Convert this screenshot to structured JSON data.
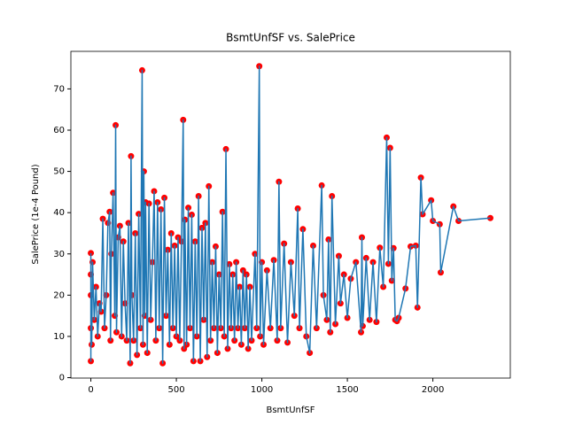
{
  "chart_data": {
    "type": "line",
    "title": "BsmtUnfSF vs. SalePrice",
    "x_label": "BsmtUnfSF",
    "y_label": "SalePrice (1e-4 Pound)",
    "x": [
      0,
      0,
      0,
      0,
      0,
      5,
      10,
      20,
      30,
      40,
      50,
      60,
      70,
      80,
      90,
      100,
      110,
      115,
      120,
      130,
      140,
      145,
      150,
      160,
      170,
      180,
      190,
      200,
      210,
      220,
      230,
      235,
      240,
      250,
      260,
      270,
      280,
      290,
      300,
      305,
      310,
      315,
      320,
      330,
      340,
      350,
      360,
      370,
      380,
      390,
      400,
      410,
      420,
      430,
      440,
      450,
      460,
      470,
      480,
      490,
      500,
      510,
      520,
      530,
      540,
      545,
      550,
      560,
      570,
      580,
      590,
      600,
      610,
      620,
      630,
      640,
      650,
      660,
      670,
      680,
      690,
      700,
      710,
      720,
      730,
      740,
      750,
      760,
      770,
      780,
      790,
      800,
      810,
      820,
      830,
      840,
      850,
      860,
      870,
      880,
      890,
      900,
      910,
      920,
      930,
      940,
      960,
      970,
      985,
      990,
      1000,
      1010,
      1030,
      1050,
      1070,
      1090,
      1100,
      1110,
      1130,
      1150,
      1170,
      1190,
      1210,
      1220,
      1240,
      1260,
      1280,
      1300,
      1320,
      1350,
      1360,
      1380,
      1390,
      1400,
      1410,
      1430,
      1450,
      1460,
      1480,
      1500,
      1520,
      1550,
      1580,
      1585,
      1590,
      1610,
      1630,
      1650,
      1670,
      1690,
      1710,
      1730,
      1740,
      1750,
      1760,
      1770,
      1780,
      1790,
      1800,
      1840,
      1870,
      1900,
      1910,
      1930,
      1940,
      1990,
      2000,
      2040,
      2046,
      2120,
      2150,
      2336
    ],
    "series": [
      {
        "name": "SalePrice",
        "color": "#1f77b4",
        "marker_color": "#ff0000",
        "values": [
          30.2,
          4,
          25,
          12,
          20,
          8,
          28,
          14,
          22,
          10,
          18,
          16,
          38.5,
          12,
          20,
          37.5,
          40.2,
          9,
          30,
          44.8,
          15,
          61.2,
          11,
          34,
          36.8,
          10,
          33,
          18,
          9,
          37.5,
          3.5,
          53.7,
          20,
          9,
          35,
          5.5,
          39.7,
          12,
          74.5,
          8,
          50,
          15,
          42.5,
          6,
          42.2,
          14,
          28,
          45.2,
          9,
          42.5,
          12,
          40.8,
          3.5,
          43.6,
          15,
          31,
          8,
          35,
          12,
          32,
          10,
          34,
          9,
          33,
          62.5,
          7,
          38.3,
          8,
          41.2,
          12,
          39.5,
          4,
          33,
          10,
          44,
          4,
          36.3,
          14,
          37.5,
          5,
          46.4,
          9,
          28,
          12,
          31.8,
          6,
          25,
          12,
          40.2,
          10,
          55.4,
          7,
          27.5,
          12,
          25,
          9,
          28,
          12,
          22,
          8,
          26,
          12,
          25,
          7,
          22,
          9,
          30,
          12,
          75.5,
          10,
          28,
          8,
          26,
          12,
          28.5,
          9,
          47.5,
          12,
          32.5,
          8.5,
          28,
          15,
          41,
          12,
          36,
          10,
          6,
          32,
          12,
          46.6,
          20,
          14,
          33.5,
          11,
          44,
          13,
          29.5,
          18,
          25,
          14.5,
          24,
          28,
          11,
          34,
          12.5,
          29,
          14,
          28,
          13.5,
          31.5,
          22,
          58.2,
          27.6,
          55.7,
          23.5,
          31.4,
          14,
          13.7,
          14.5,
          21.6,
          31.8,
          32,
          17,
          48.5,
          39.6,
          43,
          38,
          37.2,
          25.5,
          41.5,
          38,
          38.7
        ]
      }
    ],
    "xlim": [
      -116.8,
      2452.8
    ],
    "xticks": [
      0,
      500,
      1000,
      1500,
      2000
    ],
    "ylim": [
      -0.1,
      79.1
    ],
    "yticks": [
      0,
      10,
      20,
      30,
      40,
      50,
      60,
      70
    ],
    "grid": false
  }
}
